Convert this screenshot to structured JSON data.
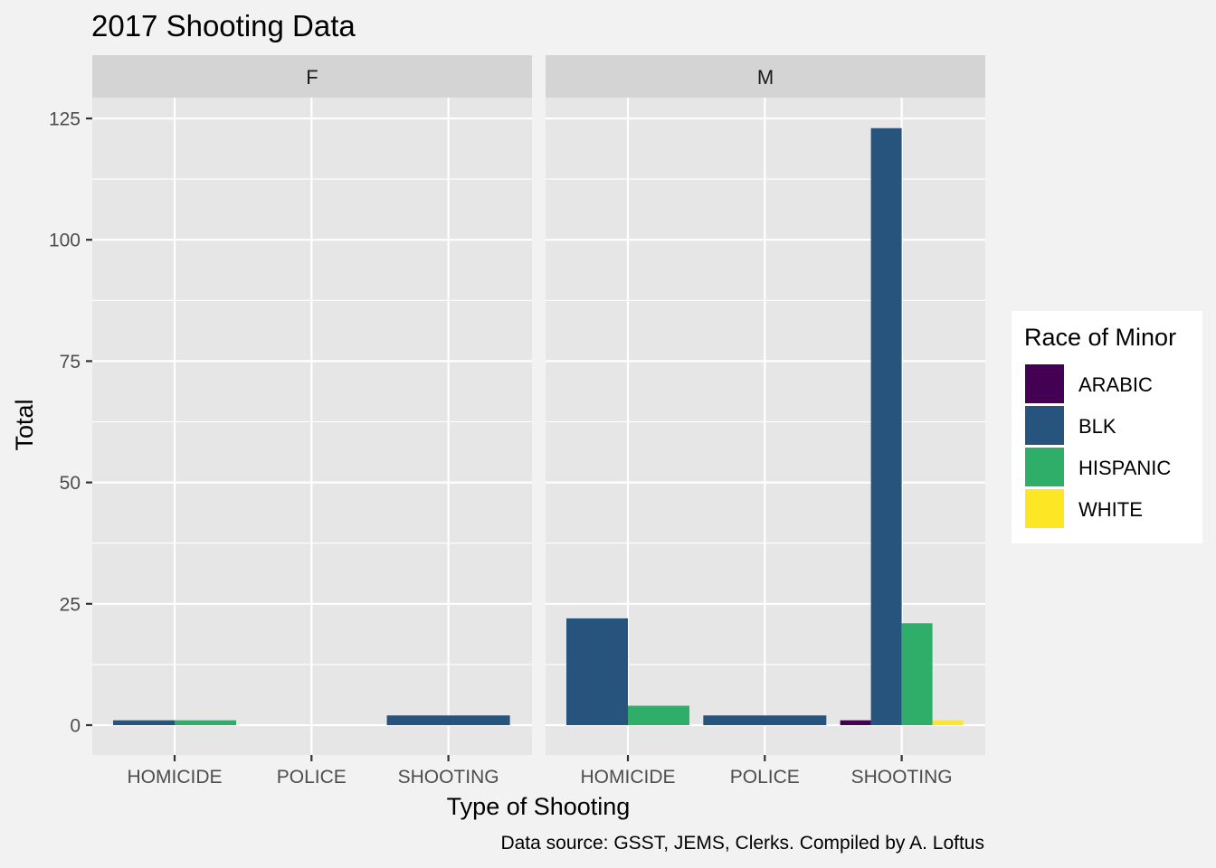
{
  "chart_data": {
    "type": "bar",
    "title": "2017 Shooting Data",
    "xlabel": "Type of Shooting",
    "ylabel": "Total",
    "caption": "Data source: GSST, JEMS, Clerks. Compiled by A. Loftus",
    "ylim": [
      0,
      125
    ],
    "yticks": [
      0,
      25,
      50,
      75,
      100,
      125
    ],
    "categories": [
      "HOMICIDE",
      "POLICE",
      "SHOOTING"
    ],
    "legend": {
      "title": "Race of Minor",
      "placement": "right",
      "entries": [
        {
          "name": "ARABIC",
          "color": "#440154"
        },
        {
          "name": "BLK",
          "color": "#26547c"
        },
        {
          "name": "HISPANIC",
          "color": "#2fae6a"
        },
        {
          "name": "WHITE",
          "color": "#fde725"
        }
      ]
    },
    "facets": [
      {
        "label": "F",
        "groups": [
          {
            "category": "HOMICIDE",
            "bars": [
              {
                "race": "BLK",
                "value": 1
              },
              {
                "race": "HISPANIC",
                "value": 1
              }
            ]
          },
          {
            "category": "POLICE",
            "bars": []
          },
          {
            "category": "SHOOTING",
            "bars": [
              {
                "race": "BLK",
                "value": 2
              }
            ]
          }
        ]
      },
      {
        "label": "M",
        "groups": [
          {
            "category": "HOMICIDE",
            "bars": [
              {
                "race": "BLK",
                "value": 22
              },
              {
                "race": "HISPANIC",
                "value": 4
              }
            ]
          },
          {
            "category": "POLICE",
            "bars": [
              {
                "race": "BLK",
                "value": 2
              }
            ]
          },
          {
            "category": "SHOOTING",
            "bars": [
              {
                "race": "ARABIC",
                "value": 1
              },
              {
                "race": "BLK",
                "value": 123
              },
              {
                "race": "HISPANIC",
                "value": 21
              },
              {
                "race": "WHITE",
                "value": 1
              }
            ]
          }
        ]
      }
    ]
  }
}
